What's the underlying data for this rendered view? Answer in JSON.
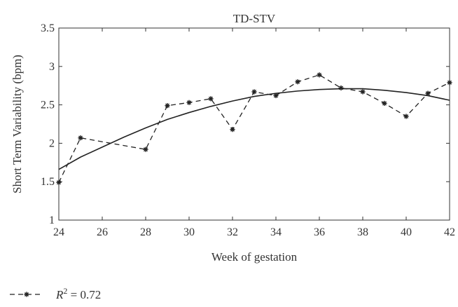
{
  "chart_data": {
    "type": "line",
    "title": "TD-STV",
    "xlabel": "Week of gestation",
    "ylabel": "Short Term Variability (bpm)",
    "xlim": [
      24,
      42
    ],
    "ylim": [
      1,
      3.5
    ],
    "xticks": [
      24,
      26,
      28,
      30,
      32,
      34,
      36,
      38,
      40,
      42
    ],
    "yticks": [
      1,
      1.5,
      2,
      2.5,
      3,
      3.5
    ],
    "grid": false,
    "series": [
      {
        "style": "dashed-star",
        "color": "#222222",
        "x": [
          24,
          25,
          28,
          29,
          30,
          31,
          32,
          33,
          34,
          35,
          36,
          37,
          38,
          39,
          40,
          41,
          42
        ],
        "y": [
          1.49,
          2.07,
          1.92,
          2.49,
          2.53,
          2.58,
          2.18,
          2.67,
          2.62,
          2.8,
          2.89,
          2.72,
          2.67,
          2.52,
          2.35,
          2.65,
          2.79
        ]
      },
      {
        "style": "solid-fit",
        "color": "#222222",
        "x": [
          24,
          25,
          26,
          27,
          28,
          29,
          30,
          31,
          32,
          33,
          34,
          35,
          36,
          37,
          38,
          39,
          40,
          41,
          42
        ],
        "y": [
          1.66,
          1.82,
          1.95,
          2.08,
          2.2,
          2.31,
          2.4,
          2.48,
          2.55,
          2.61,
          2.65,
          2.68,
          2.7,
          2.71,
          2.71,
          2.69,
          2.66,
          2.62,
          2.56
        ]
      }
    ],
    "legend": {
      "placement": "bottom-left",
      "label_prefix": "R",
      "label_exponent": "2",
      "label_value": " = 0.72"
    }
  }
}
